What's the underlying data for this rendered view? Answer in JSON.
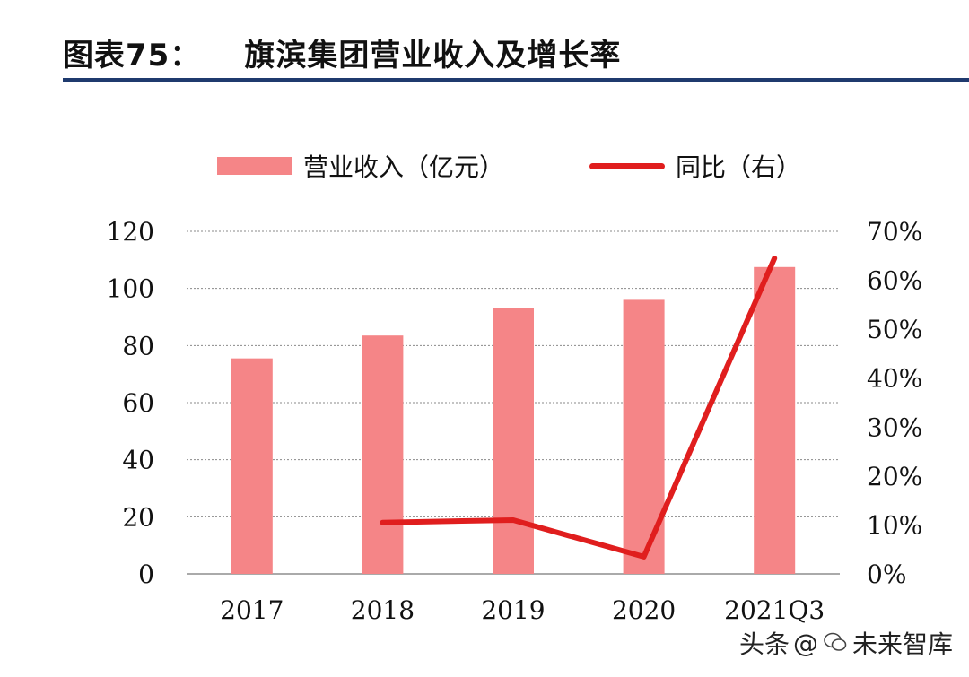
{
  "header": {
    "figure_no": "图表75：",
    "title": "旗滨集团营业收入及增长率"
  },
  "watermark": {
    "prefix": "头条",
    "at": "@",
    "name": "未来智库"
  },
  "colors": {
    "bar": "#f58587",
    "line": "#e01e1e",
    "rule": "#1f3a6e",
    "grid": "#8a8a8a"
  },
  "chart_data": {
    "type": "bar",
    "categories": [
      "2017",
      "2018",
      "2019",
      "2020",
      "2021Q3"
    ],
    "series": [
      {
        "name": "营业收入（亿元）",
        "type": "bar",
        "axis": "left",
        "values": [
          75.5,
          83.5,
          93,
          96,
          107.5
        ]
      },
      {
        "name": "同比（右）",
        "type": "line",
        "axis": "right",
        "values": [
          null,
          10.5,
          11,
          3.5,
          64.5
        ]
      }
    ],
    "y_left": {
      "min": 0,
      "max": 120,
      "ticks": [
        0,
        20,
        40,
        60,
        80,
        100,
        120
      ],
      "tick_labels": [
        "0",
        "20",
        "40",
        "60",
        "80",
        "100",
        "120"
      ]
    },
    "y_right": {
      "min": 0,
      "max": 70,
      "ticks": [
        0,
        10,
        20,
        30,
        40,
        50,
        60,
        70
      ],
      "tick_labels": [
        "0%",
        "10%",
        "20%",
        "30%",
        "40%",
        "50%",
        "60%",
        "70%"
      ]
    },
    "grid": true,
    "legend": "top"
  }
}
